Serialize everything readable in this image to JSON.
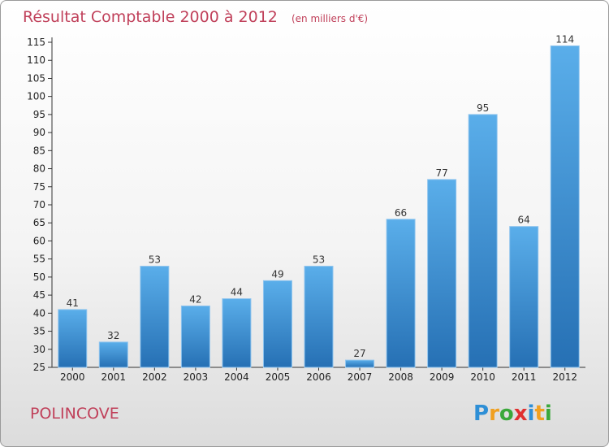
{
  "chart_data": {
    "type": "bar",
    "title": "Résultat Comptable 2000 à 2012",
    "subtitle": "(en milliers d'€)",
    "categories": [
      "2000",
      "2001",
      "2002",
      "2003",
      "2004",
      "2005",
      "2006",
      "2007",
      "2008",
      "2009",
      "2010",
      "2011",
      "2012"
    ],
    "values": [
      41,
      32,
      53,
      42,
      44,
      49,
      53,
      27,
      66,
      77,
      95,
      64,
      114
    ],
    "ylim": [
      25,
      115
    ],
    "yticks": [
      25,
      30,
      35,
      40,
      45,
      50,
      55,
      60,
      65,
      70,
      75,
      80,
      85,
      90,
      95,
      100,
      105,
      110,
      115
    ],
    "xlabel": "",
    "ylabel": "",
    "grid": false,
    "bar_color": "#3a8fd4"
  },
  "footer": {
    "commune": "POLINCOVE",
    "logo_letters": [
      "P",
      "r",
      "o",
      "x",
      "i",
      "t",
      "i"
    ],
    "logo_colors": [
      "#2e8fd6",
      "#f0a020",
      "#3aa83a",
      "#e03030",
      "#2e8fd6",
      "#f0a020",
      "#3aa83a"
    ]
  }
}
